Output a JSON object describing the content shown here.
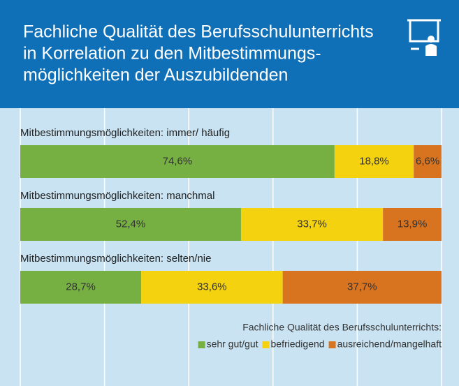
{
  "chart_data": {
    "type": "stacked-bar-horizontal",
    "title": [
      "Fachliche Qualität des Berufsschulunterrichts",
      "in Korrelation zu den Mitbestimmungs-",
      "möglichkeiten der Auszubildenden"
    ],
    "categories": [
      "Mitbestimmungsmöglichkeiten: immer/ häufig",
      "Mitbestimmungsmöglichkeiten: manchmal",
      "Mitbestimmungsmöglichkeiten: selten/nie"
    ],
    "series": [
      {
        "name": "sehr gut/gut",
        "color": "#76b043",
        "values": [
          74.6,
          52.4,
          28.7
        ],
        "value_labels": [
          "74,6%",
          "52,4%",
          "28,7%"
        ]
      },
      {
        "name": "befriedigend",
        "color": "#f5d20f",
        "values": [
          18.8,
          33.7,
          33.6
        ],
        "value_labels": [
          "18,8%",
          "33,7%",
          "33,6%"
        ]
      },
      {
        "name": "ausreichend/mangelhaft",
        "color": "#d8731f",
        "values": [
          6.6,
          13.9,
          37.7
        ],
        "value_labels": [
          "6,6%",
          "13,9%",
          "37,7%"
        ]
      }
    ],
    "legend_title": "Fachliche Qualität des Berufsschulunterrichts:",
    "xlim": [
      0,
      100
    ],
    "xticks": [
      0,
      20,
      40,
      60,
      80,
      100
    ],
    "grid": true
  }
}
